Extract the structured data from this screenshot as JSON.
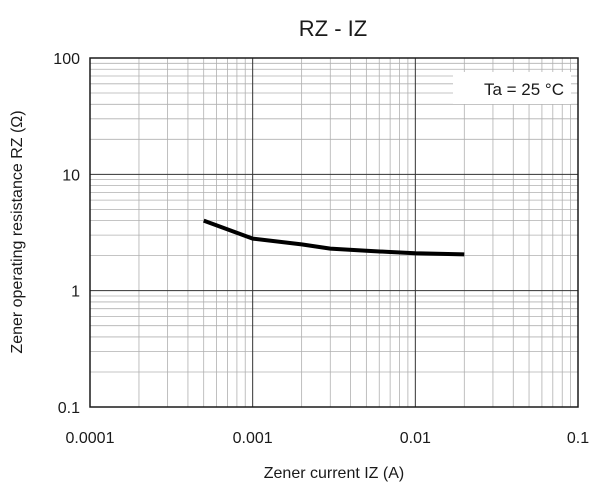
{
  "chart_data": {
    "type": "line",
    "title": "RZ - IZ",
    "xlabel": "Zener current IZ (A)",
    "ylabel": "Zener operating resistance RZ (Ω)",
    "xscale": "log",
    "yscale": "log",
    "xlim": [
      0.0001,
      0.1
    ],
    "ylim": [
      0.1,
      100
    ],
    "x_ticks": [
      0.0001,
      0.001,
      0.01,
      0.1
    ],
    "x_tick_labels": [
      "0.0001",
      "0.001",
      "0.01",
      "0.1"
    ],
    "y_ticks": [
      0.1,
      1,
      10,
      100
    ],
    "y_tick_labels": [
      "0.1",
      "1",
      "10",
      "100"
    ],
    "grid": true,
    "annotation": "Ta = 25 °C",
    "annotation_position": "top-right",
    "line_color": "#000000",
    "grid_color": "#b0b0b0",
    "series": [
      {
        "x": [
          0.0005,
          0.001,
          0.002,
          0.003,
          0.005,
          0.007,
          0.01,
          0.02
        ],
        "y": [
          4.0,
          2.8,
          2.5,
          2.3,
          2.2,
          2.15,
          2.1,
          2.05
        ]
      }
    ]
  }
}
